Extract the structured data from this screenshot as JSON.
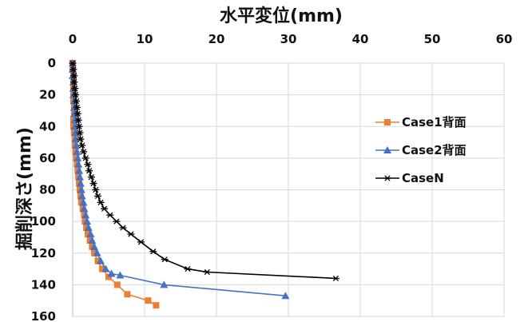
{
  "chart_data": {
    "type": "line",
    "xlabel": "水平変位(mm)",
    "ylabel": "掘削深さ(mm)",
    "x_axis_position": "top",
    "y_axis_reversed": true,
    "xlim": [
      0,
      60
    ],
    "ylim": [
      0,
      160
    ],
    "xticks": [
      "0",
      "10",
      "20",
      "30",
      "40",
      "50",
      "60"
    ],
    "yticks": [
      "0",
      "20",
      "40",
      "60",
      "80",
      "100",
      "120",
      "140",
      "160"
    ],
    "grid": true,
    "legend_position": "right",
    "series": [
      {
        "name": "Case1背面",
        "color": "#ED7D31",
        "marker": "square",
        "points": [
          [
            0.0,
            0
          ],
          [
            0.0,
            4
          ],
          [
            0.1,
            8
          ],
          [
            0.1,
            12
          ],
          [
            0.1,
            16
          ],
          [
            0.1,
            20
          ],
          [
            0.1,
            24
          ],
          [
            0.2,
            28
          ],
          [
            0.2,
            32
          ],
          [
            0.1,
            36
          ],
          [
            0.1,
            40
          ],
          [
            0.2,
            44
          ],
          [
            0.3,
            48
          ],
          [
            0.3,
            52
          ],
          [
            0.4,
            56
          ],
          [
            0.5,
            60
          ],
          [
            0.6,
            64
          ],
          [
            0.7,
            68
          ],
          [
            0.8,
            72
          ],
          [
            0.9,
            76
          ],
          [
            1.0,
            80
          ],
          [
            1.1,
            84
          ],
          [
            1.2,
            88
          ],
          [
            1.4,
            92
          ],
          [
            1.6,
            96
          ],
          [
            1.7,
            100
          ],
          [
            1.9,
            104
          ],
          [
            2.1,
            108
          ],
          [
            2.4,
            112
          ],
          [
            2.7,
            116
          ],
          [
            3.0,
            120
          ],
          [
            3.5,
            125
          ],
          [
            4.1,
            130
          ],
          [
            5.0,
            135
          ],
          [
            6.2,
            140
          ],
          [
            7.6,
            146
          ],
          [
            10.5,
            150
          ],
          [
            11.6,
            153
          ]
        ]
      },
      {
        "name": "Case2背面",
        "color": "#4472C4",
        "marker": "triangle",
        "points": [
          [
            0.0,
            0
          ],
          [
            0.0,
            4
          ],
          [
            0.0,
            8
          ],
          [
            0.1,
            12
          ],
          [
            0.1,
            16
          ],
          [
            0.1,
            20
          ],
          [
            0.2,
            24
          ],
          [
            0.2,
            28
          ],
          [
            0.2,
            32
          ],
          [
            0.3,
            36
          ],
          [
            0.3,
            40
          ],
          [
            0.4,
            44
          ],
          [
            0.4,
            48
          ],
          [
            0.5,
            52
          ],
          [
            0.6,
            56
          ],
          [
            0.7,
            60
          ],
          [
            0.8,
            64
          ],
          [
            0.9,
            68
          ],
          [
            1.0,
            72
          ],
          [
            1.1,
            76
          ],
          [
            1.2,
            80
          ],
          [
            1.3,
            84
          ],
          [
            1.5,
            88
          ],
          [
            1.6,
            92
          ],
          [
            1.8,
            96
          ],
          [
            2.0,
            100
          ],
          [
            2.2,
            104
          ],
          [
            2.5,
            108
          ],
          [
            2.7,
            112
          ],
          [
            3.0,
            116
          ],
          [
            3.4,
            120
          ],
          [
            3.9,
            125
          ],
          [
            4.6,
            130
          ],
          [
            5.4,
            133
          ],
          [
            6.6,
            134
          ],
          [
            12.7,
            140
          ],
          [
            29.6,
            147
          ]
        ]
      },
      {
        "name": "CaseN",
        "color": "#000000",
        "marker": "star",
        "points": [
          [
            0.0,
            0
          ],
          [
            0.1,
            4
          ],
          [
            0.2,
            8
          ],
          [
            0.2,
            12
          ],
          [
            0.3,
            16
          ],
          [
            0.4,
            20
          ],
          [
            0.5,
            24
          ],
          [
            0.6,
            28
          ],
          [
            0.7,
            32
          ],
          [
            0.8,
            36
          ],
          [
            0.9,
            40
          ],
          [
            1.0,
            44
          ],
          [
            1.1,
            48
          ],
          [
            1.3,
            52
          ],
          [
            1.5,
            56
          ],
          [
            1.8,
            60
          ],
          [
            2.1,
            64
          ],
          [
            2.3,
            68
          ],
          [
            2.6,
            72
          ],
          [
            2.9,
            76
          ],
          [
            3.2,
            80
          ],
          [
            3.5,
            84
          ],
          [
            3.9,
            88
          ],
          [
            4.4,
            92
          ],
          [
            5.2,
            96
          ],
          [
            6.1,
            100
          ],
          [
            7.0,
            104
          ],
          [
            8.1,
            108
          ],
          [
            9.5,
            113
          ],
          [
            11.2,
            119
          ],
          [
            12.8,
            124
          ],
          [
            16.0,
            130
          ],
          [
            18.7,
            132
          ],
          [
            36.6,
            136
          ]
        ]
      }
    ]
  }
}
